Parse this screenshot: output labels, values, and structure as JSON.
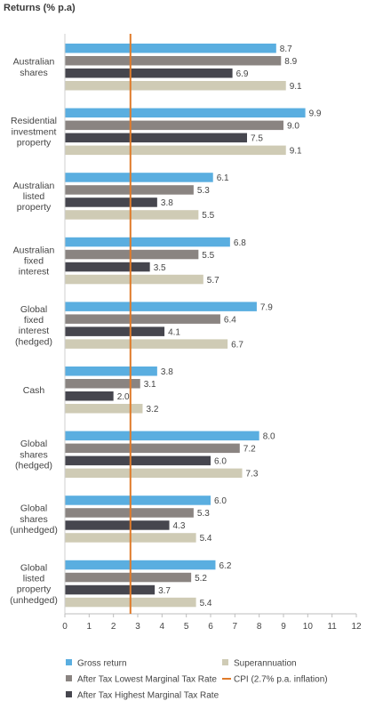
{
  "chart_data": {
    "type": "bar",
    "orientation": "horizontal",
    "title": "Returns (% p.a)",
    "categories": [
      [
        "Australian",
        "shares"
      ],
      [
        "Residential",
        "investment",
        "property"
      ],
      [
        "Australian",
        "listed",
        "property"
      ],
      [
        "Australian",
        "fixed",
        "interest"
      ],
      [
        "Global",
        "fixed",
        "interest",
        "(hedged)"
      ],
      [
        "Cash"
      ],
      [
        "Global",
        "shares",
        "(hedged)"
      ],
      [
        "Global",
        "shares",
        "(unhedged)"
      ],
      [
        "Global",
        "listed",
        "property",
        "(unhedged)"
      ]
    ],
    "series": [
      {
        "name": "Gross return",
        "color": "#5aaee0",
        "values": [
          8.7,
          9.9,
          6.1,
          6.8,
          7.9,
          3.8,
          8.0,
          6.0,
          6.2
        ]
      },
      {
        "name": "After Tax Lowest Marginal Tax Rate",
        "color": "#8a8481",
        "values": [
          8.9,
          9.0,
          5.3,
          5.5,
          6.4,
          3.1,
          7.2,
          5.3,
          5.2
        ]
      },
      {
        "name": "After Tax Highest Marginal Tax Rate",
        "color": "#46464e",
        "values": [
          6.9,
          7.5,
          3.8,
          3.5,
          4.1,
          2.0,
          6.0,
          4.3,
          3.7
        ]
      },
      {
        "name": "Superannuation",
        "color": "#cfcbb5",
        "values": [
          9.1,
          9.1,
          5.5,
          5.7,
          6.7,
          3.2,
          7.3,
          5.4,
          5.4
        ]
      }
    ],
    "value_labels": [
      [
        "8.7",
        "9.9",
        "6.1",
        "6.8",
        "7.9",
        "3.8",
        "8.0",
        "6.0",
        "6.2"
      ],
      [
        "8.9",
        "9.0",
        "5.3",
        "5.5",
        "6.4",
        "3.1",
        "7.2",
        "5.3",
        "5.2"
      ],
      [
        "6.9",
        "7.5",
        "3.8",
        "3.5",
        "4.1",
        "2.0",
        "6.0",
        "4.3",
        "3.7"
      ],
      [
        "9.1",
        "9.1",
        "5.5",
        "5.7",
        "6.7",
        "3.2",
        "7.3",
        "5.4",
        "5.4"
      ]
    ],
    "reference_line": {
      "name": "CPI (2.7% p.a. inflation)",
      "value": 2.7,
      "color": "#e07b2a"
    },
    "xlim": [
      0,
      12
    ],
    "xticks": [
      "0",
      "1",
      "2",
      "3",
      "4",
      "5",
      "6",
      "7",
      "8",
      "9",
      "10",
      "11",
      "12"
    ],
    "grid": false,
    "legend_position": "bottom"
  }
}
